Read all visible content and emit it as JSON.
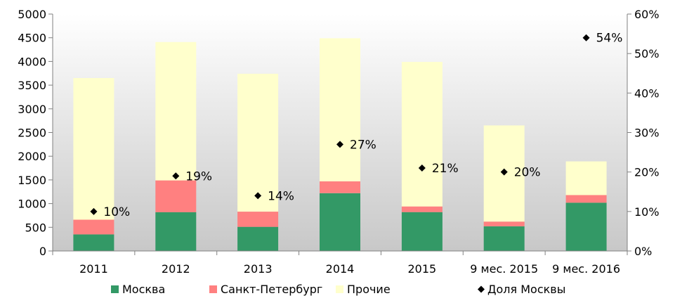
{
  "chart_data": {
    "type": "bar",
    "stacked": true,
    "categories": [
      "2011",
      "2012",
      "2013",
      "2014",
      "2015",
      "9 мес. 2015",
      "9 мес. 2016"
    ],
    "series": [
      {
        "name": "Москва",
        "color": "#339966",
        "values": [
          350,
          820,
          510,
          1220,
          820,
          520,
          1020
        ]
      },
      {
        "name": "Санкт-Петербург",
        "color": "#ff8080",
        "values": [
          310,
          670,
          320,
          250,
          120,
          100,
          160
        ]
      },
      {
        "name": "Прочие",
        "color": "#ffffcc",
        "values": [
          2990,
          2920,
          2910,
          3020,
          3050,
          2030,
          710
        ]
      }
    ],
    "line_series": {
      "name": "Доля Москвы",
      "axis": "right",
      "marker": "diamond",
      "values": [
        0.1,
        0.19,
        0.14,
        0.27,
        0.21,
        0.2,
        0.54
      ],
      "labels": [
        "10%",
        "19%",
        "14%",
        "27%",
        "21%",
        "20%",
        "54%"
      ]
    },
    "y_left": {
      "min": 0,
      "max": 5000,
      "step": 500,
      "ticks": [
        "0",
        "500",
        "1000",
        "1500",
        "2000",
        "2500",
        "3000",
        "3500",
        "4000",
        "4500",
        "5000"
      ]
    },
    "y_right": {
      "min": 0,
      "max": 0.6,
      "step": 0.1,
      "ticks": [
        "0%",
        "10%",
        "20%",
        "30%",
        "40%",
        "50%",
        "60%"
      ]
    },
    "title": "",
    "xlabel": "",
    "ylabel": "",
    "legend_position": "bottom",
    "plot_background": "gradient white-to-gray",
    "grid": false
  }
}
